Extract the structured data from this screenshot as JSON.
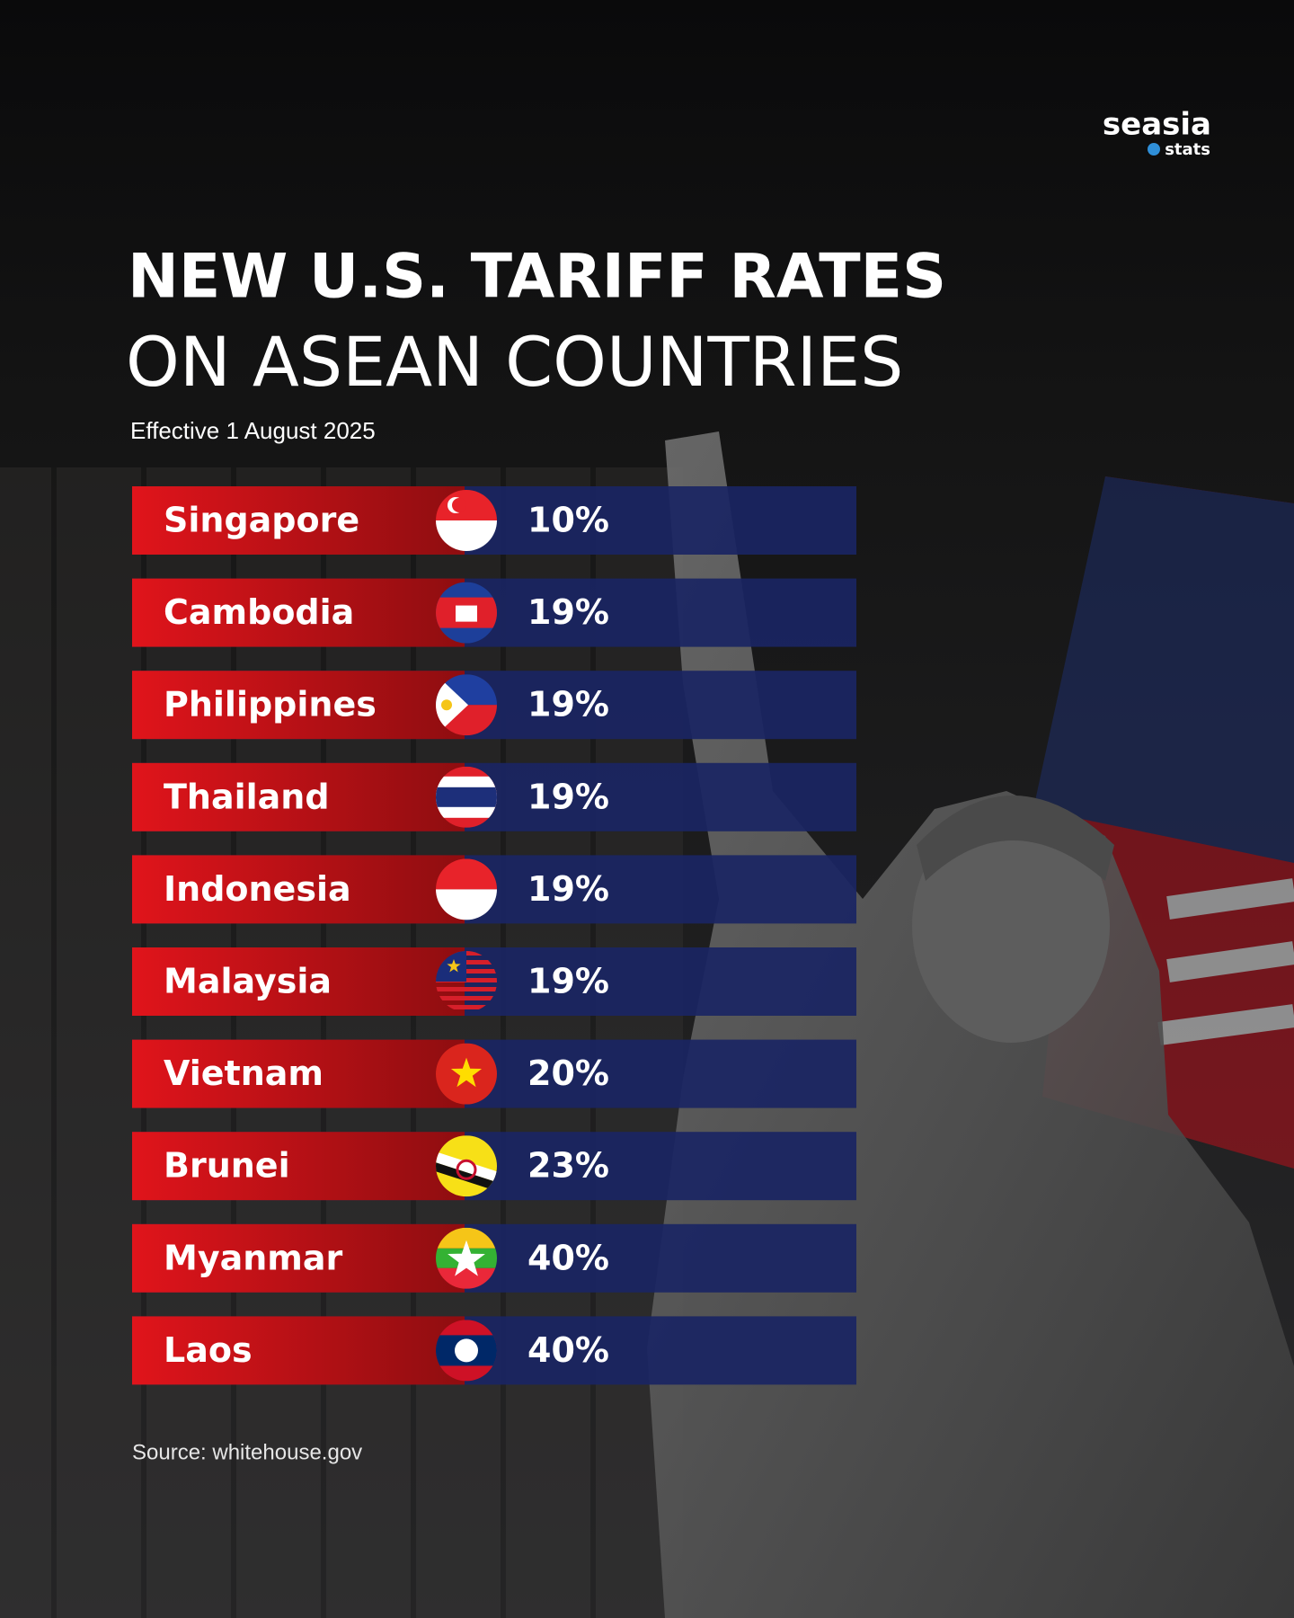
{
  "logo": {
    "name": "seasia",
    "tag": "stats"
  },
  "title": {
    "line1": "NEW U.S. TARIFF RATES",
    "line2": "ON ASEAN COUNTRIES"
  },
  "subtitle": "Effective 1 August 2025",
  "rows": [
    {
      "country": "Singapore",
      "rate": "10%"
    },
    {
      "country": "Cambodia",
      "rate": "19%"
    },
    {
      "country": "Philippines",
      "rate": "19%"
    },
    {
      "country": "Thailand",
      "rate": "19%"
    },
    {
      "country": "Indonesia",
      "rate": "19%"
    },
    {
      "country": "Malaysia",
      "rate": "19%"
    },
    {
      "country": "Vietnam",
      "rate": "20%"
    },
    {
      "country": "Brunei",
      "rate": "23%"
    },
    {
      "country": "Myanmar",
      "rate": "40%"
    },
    {
      "country": "Laos",
      "rate": "40%"
    }
  ],
  "source": "Source: whitehouse.gov"
}
